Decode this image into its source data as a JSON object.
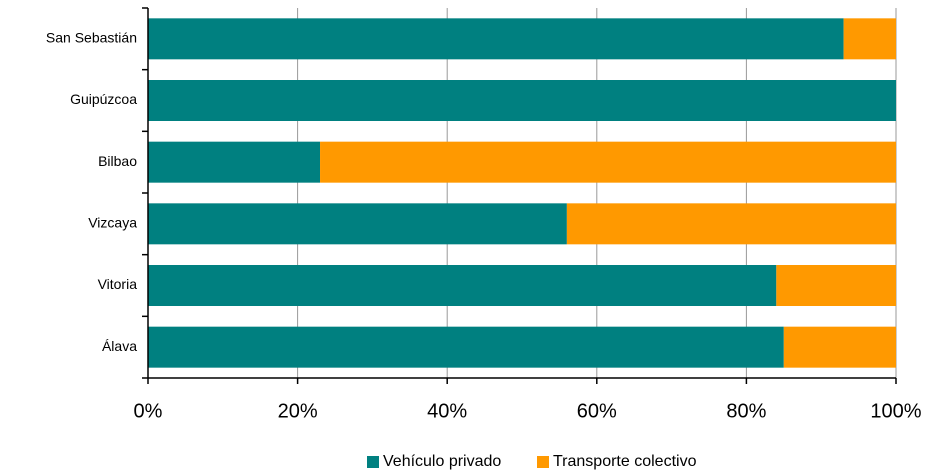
{
  "chart_data": {
    "type": "stacked_barh",
    "categories": [
      "San Sebastián",
      "Guipúzcoa",
      "Bilbao",
      "Vizcaya",
      "Vitoria",
      "Álava"
    ],
    "series": [
      {
        "name": "Vehículo privado",
        "color": "#008080",
        "values": [
          93,
          100,
          23,
          56,
          84,
          85
        ]
      },
      {
        "name": "Transporte colectivo",
        "color": "#ff9900",
        "values": [
          7,
          0,
          77,
          44,
          16,
          15
        ]
      }
    ],
    "xlim": [
      0,
      100
    ],
    "xticks": [
      {
        "value": 0,
        "label": "0%"
      },
      {
        "value": 20,
        "label": "20%"
      },
      {
        "value": 40,
        "label": "40%"
      },
      {
        "value": 60,
        "label": "60%"
      },
      {
        "value": 80,
        "label": "80%"
      },
      {
        "value": 100,
        "label": "100%"
      }
    ],
    "grid": true,
    "legend": "bottom"
  }
}
